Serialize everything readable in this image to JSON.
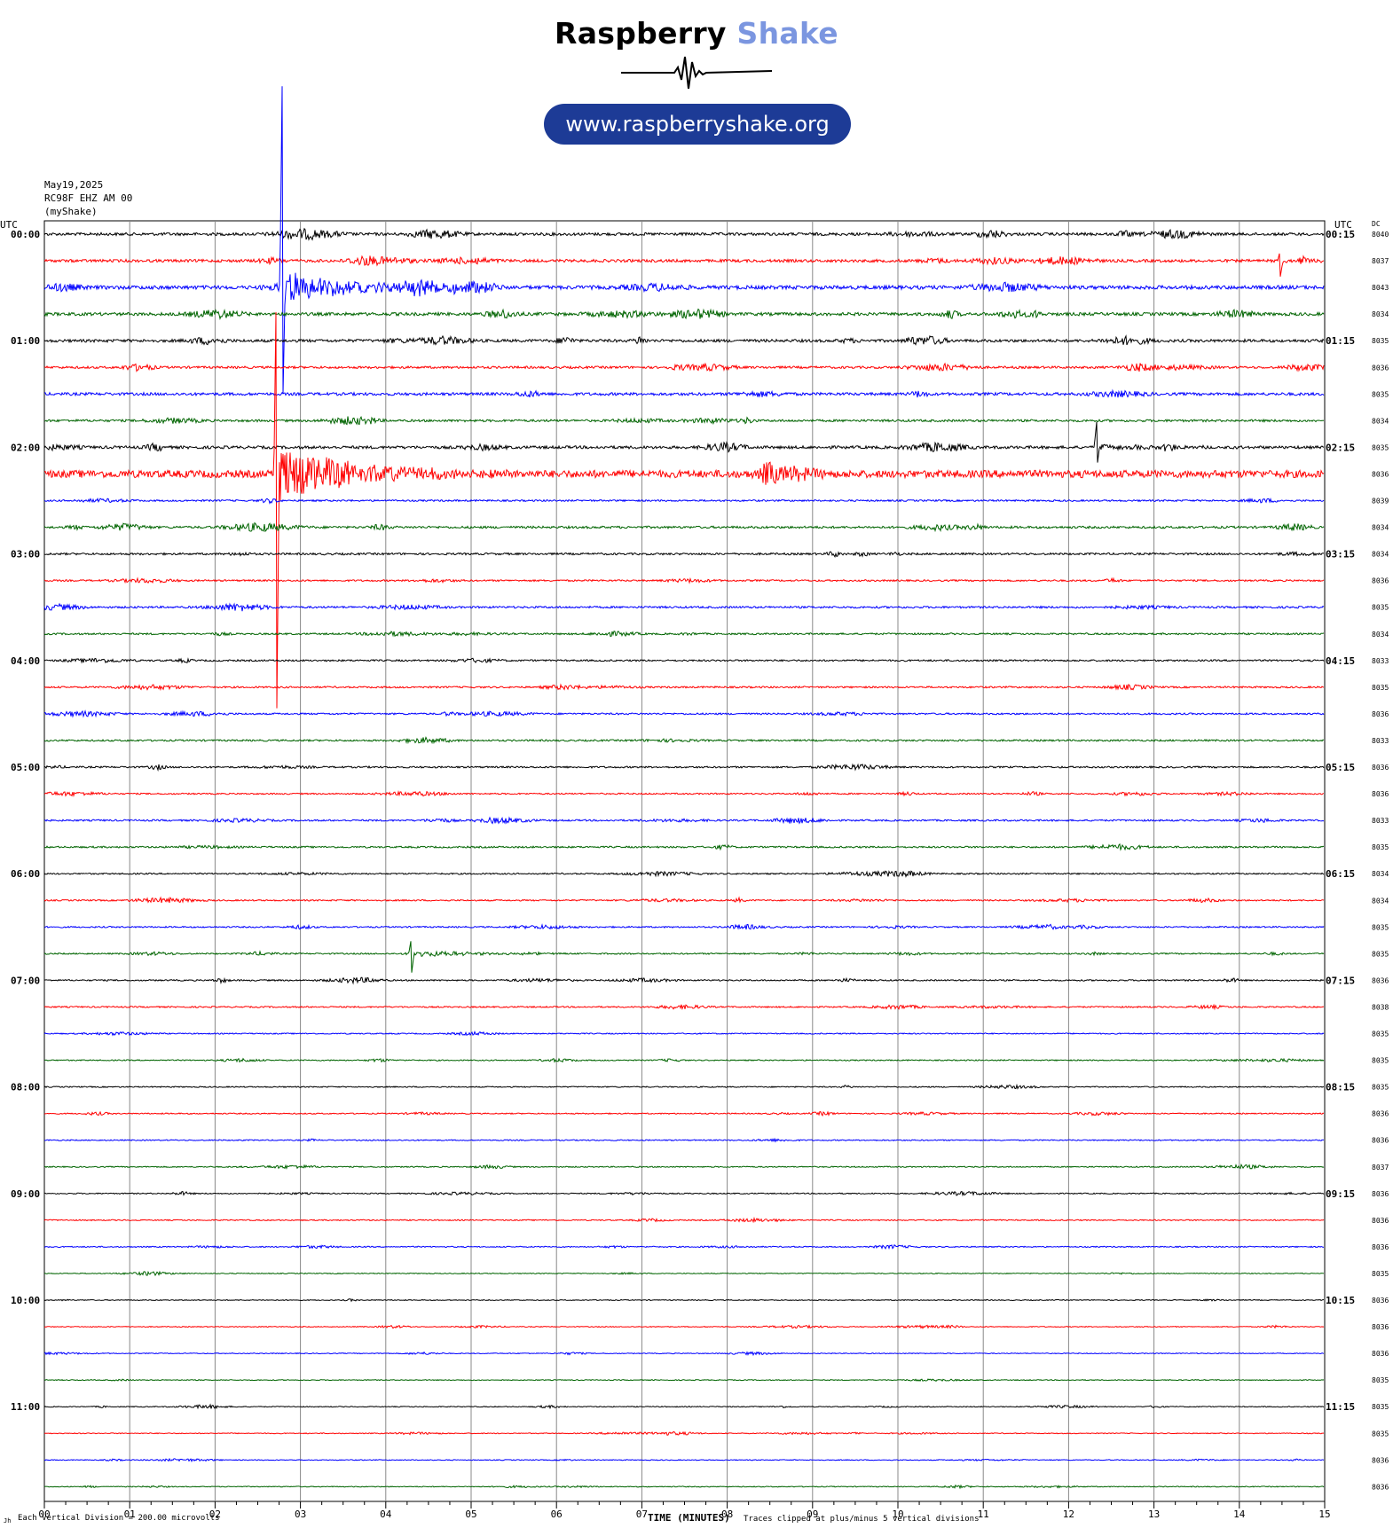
{
  "header": {
    "brand_word1": "Raspberry",
    "brand_word2": "Shake",
    "url": "www.raspberryshake.org",
    "date": "May19,2025",
    "station": "RC98F EHZ AM 00",
    "network": "(myShake)"
  },
  "footer": {
    "scale_note": "Each Vertical Division =  200.00 microvolts",
    "xlabel": "TIME (MINUTES)",
    "clip_note": "Traces clipped at plus/minus 5 vertical divisions",
    "corner_mark": "Jh"
  },
  "colors": {
    "brand_accent": "#7b96e0",
    "url_pill": "#1d3b96",
    "trace_cycle": [
      "#000000",
      "#ff0000",
      "#0000ff",
      "#006400"
    ]
  },
  "chart_data": {
    "type": "line",
    "title": "",
    "xlabel": "TIME (MINUTES)",
    "xlim": [
      0,
      15
    ],
    "x_ticks": [
      "00",
      "01",
      "02",
      "03",
      "04",
      "05",
      "06",
      "07",
      "08",
      "09",
      "10",
      "11",
      "12",
      "13",
      "14",
      "15"
    ],
    "left_axis_label": "UTC",
    "right_axis_label": "UTC",
    "dc_label": "DC",
    "left_hour_labels": [
      "00:00",
      "01:00",
      "02:00",
      "03:00",
      "04:00",
      "05:00",
      "06:00",
      "07:00",
      "08:00",
      "09:00",
      "10:00",
      "11:00"
    ],
    "right_hour_labels": [
      "00:15",
      "01:15",
      "02:15",
      "03:15",
      "04:15",
      "05:15",
      "06:15",
      "07:15",
      "08:15",
      "09:15",
      "10:15",
      "11:15"
    ],
    "lines_per_hour": 4,
    "minutes_per_line": 15,
    "dc_offsets": [
      "8040",
      "8037",
      "8043",
      "8034",
      "8035",
      "8036",
      "8035",
      "8034",
      "8035",
      "8036",
      "8039",
      "8034",
      "8034",
      "8036",
      "8035",
      "8034",
      "8033",
      "8035",
      "8036",
      "8033",
      "8036",
      "8036",
      "8033",
      "8035",
      "8034",
      "8034",
      "8035",
      "8035",
      "8036",
      "8038",
      "8035",
      "8035",
      "8035",
      "8036",
      "8036",
      "8037",
      "8036",
      "8036",
      "8036",
      "8035",
      "8036",
      "8036",
      "8036",
      "8035",
      "8035",
      "8035",
      "8036",
      "8036"
    ],
    "noise_amplitude": [
      1.0,
      1.0,
      1.3,
      1.1,
      1.0,
      0.8,
      1.0,
      0.8,
      1.0,
      2.6,
      0.6,
      0.8,
      0.7,
      0.6,
      0.7,
      0.6,
      0.6,
      0.6,
      0.6,
      0.6,
      0.6,
      0.5,
      0.6,
      0.6,
      0.5,
      0.5,
      0.5,
      0.5,
      0.5,
      0.5,
      0.4,
      0.4,
      0.4,
      0.4,
      0.4,
      0.4,
      0.4,
      0.4,
      0.4,
      0.3,
      0.3,
      0.3,
      0.3,
      0.3,
      0.3,
      0.3,
      0.3,
      0.3
    ],
    "events": [
      {
        "line": 2,
        "minute": 2.79,
        "peak_up": 8.7,
        "peak_down": 5.0,
        "label": "large spike"
      },
      {
        "line": 9,
        "minute": 2.72,
        "peak_up": 7.8,
        "peak_down": 9.9,
        "label": "large spike"
      },
      {
        "line": 8,
        "minute": 12.33,
        "peak_up": 1.0,
        "peak_down": 0.8,
        "label": "local burst"
      },
      {
        "line": 27,
        "minute": 4.3,
        "peak_up": 0.6,
        "peak_down": 0.8,
        "label": "local burst"
      },
      {
        "line": 1,
        "minute": 14.48,
        "peak_up": 0.4,
        "peak_down": 0.6,
        "label": "local burst"
      }
    ],
    "grid": true
  }
}
